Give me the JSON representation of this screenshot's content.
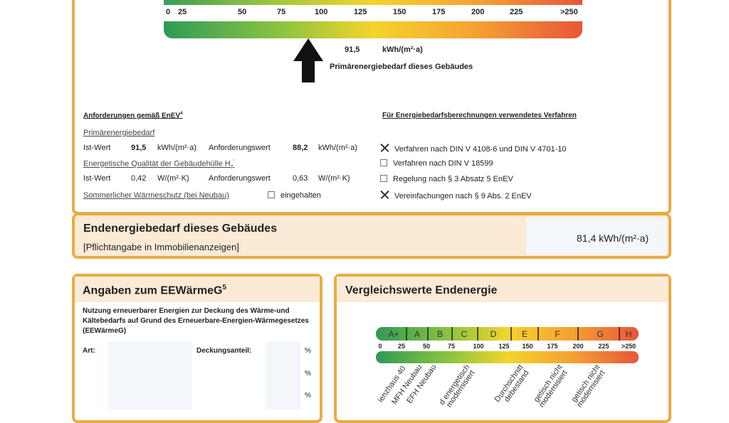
{
  "top_scale": {
    "ticks": [
      "0",
      "25",
      "50",
      "75",
      "100",
      "125",
      "150",
      "175",
      "200",
      "225",
      ">250"
    ],
    "value": "91,5",
    "unit": "kWh/(m²·a)",
    "caption": "Primärenergiebedarf dieses Gebäudes"
  },
  "requirements": {
    "heading": "Anforderungen gemäß EnEV",
    "heading_sup": "4",
    "primary_label": "Primärenergiebedarf",
    "primary_row": {
      "ist_label": "Ist-Wert",
      "ist_value": "91,5",
      "ist_unit": "kWh/(m²·a)",
      "req_label": "Anforderungswert",
      "req_value": "88,2",
      "req_unit": "kWh/(m²·a)"
    },
    "envelope_label": "Energetische Qualität der Gebäudehülle H",
    "envelope_sub": "T",
    "envelope_sup": "'",
    "envelope_row": {
      "ist_label": "Ist-Wert",
      "ist_value": "0,42",
      "ist_unit": "W/(m²·K)",
      "req_label": "Anforderungswert",
      "req_value": "0,63",
      "req_unit": "W/(m²·K)"
    },
    "summer_label": "Sommerlicher Wärmeschutz (bei Neubau)",
    "summer_checkbox_label": "eingehalten",
    "summer_checked": false
  },
  "method": {
    "heading": "Für Energiebedarfsberechnungen verwendetes Verfahren",
    "items": [
      {
        "label": "Verfahren nach DIN V 4108-6 und DIN V 4701-10",
        "checked": true
      },
      {
        "label": "Verfahren nach DIN V 18599",
        "checked": false
      },
      {
        "label": "Regelung nach § 3 Absatz 5 EnEV",
        "checked": false
      },
      {
        "label": "Vereinfachungen nach § 9 Abs. 2 EnEV",
        "checked": true
      }
    ]
  },
  "final_energy": {
    "title": "Endenergiebedarf dieses Gebäudes",
    "subtitle": "[Pflichtangabe in Immobilienanzeigen]",
    "value": "81,4 kWh/(m²·a)"
  },
  "eewaermeg": {
    "title": "Angaben zum EEWärmeG",
    "title_sup": "5",
    "description": "Nutzung erneuerbarer Energien zur Deckung des Wärme-und Kältebedarfs auf Grund des Erneuerbare-Energien-Wärmegesetzes (EEWärmeG)",
    "art_label": "Art:",
    "share_label": "Deckungsanteil:",
    "percent": "%"
  },
  "comparison": {
    "title": "Vergleichswerte Endenergie",
    "classes": [
      "A+",
      "A",
      "B",
      "C",
      "D",
      "E",
      "F",
      "G",
      "H"
    ],
    "ticks": [
      "0",
      "25",
      "50",
      "75",
      "100",
      "125",
      "150",
      "175",
      "200",
      "225",
      ">250"
    ],
    "labels": [
      "ienzhaus 40",
      "MFH Neubau",
      "EFH Neubau",
      "d energetisch",
      "modernisiert",
      "Durchschnitt",
      "debestand",
      "getisch nicht",
      "modernisiert",
      "getisch nicht",
      "modernisiert"
    ]
  },
  "colors": {
    "border": "#e9ac45",
    "header_bg": "#fbead5",
    "green": "#2f9a57",
    "yellow": "#f3d42c",
    "red": "#e8553a"
  }
}
